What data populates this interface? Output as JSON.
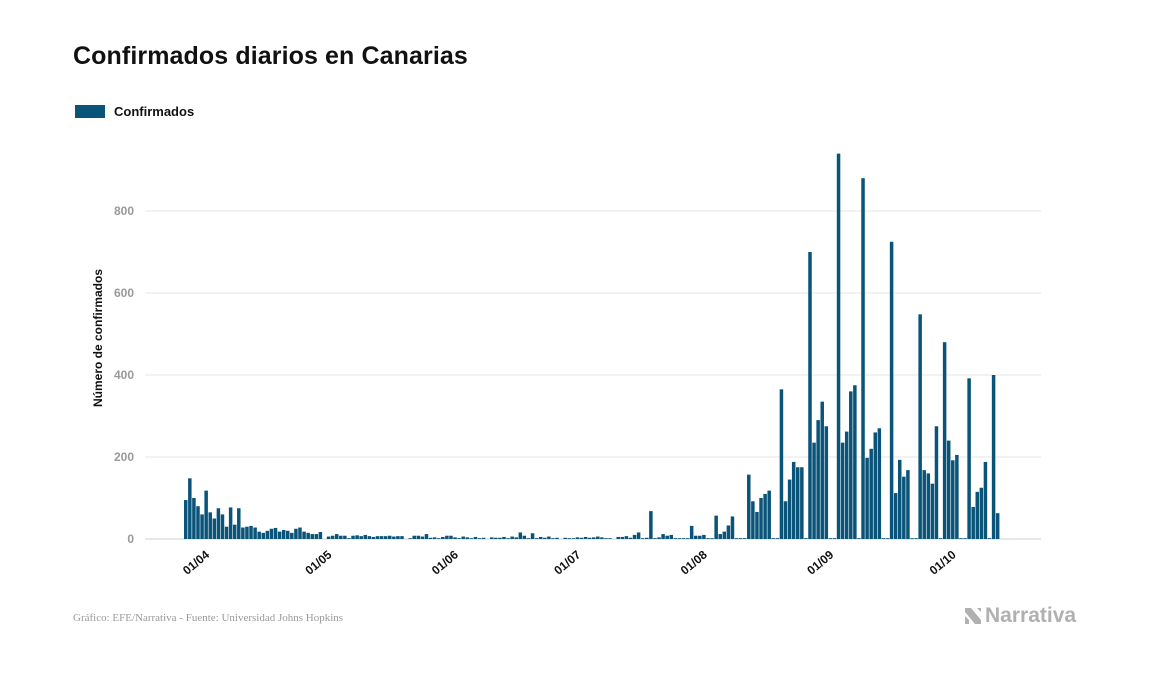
{
  "chart_data": {
    "type": "bar",
    "title": "Confirmados diarios en Canarias",
    "ylabel": "Número de confirmados",
    "xlabel": "",
    "ylim": [
      0,
      960
    ],
    "yticks": [
      0,
      200,
      400,
      600,
      800
    ],
    "grid": true,
    "legend_position": "top-left",
    "series": [
      {
        "name": "Confirmados",
        "color": "#0b5479"
      }
    ],
    "x_ticks": [
      "01/04",
      "01/05",
      "01/06",
      "01/07",
      "01/08",
      "01/09",
      "01/10"
    ],
    "x_start": "2020-03-27",
    "values": [
      95,
      148,
      100,
      80,
      60,
      118,
      65,
      50,
      75,
      60,
      30,
      77,
      35,
      75,
      28,
      30,
      32,
      28,
      18,
      15,
      20,
      25,
      27,
      18,
      22,
      20,
      15,
      25,
      28,
      18,
      15,
      12,
      12,
      17,
      0,
      6,
      8,
      12,
      8,
      8,
      2,
      8,
      9,
      7,
      10,
      7,
      5,
      7,
      7,
      7,
      8,
      6,
      7,
      7,
      0,
      2,
      8,
      8,
      6,
      12,
      3,
      4,
      2,
      5,
      8,
      8,
      4,
      2,
      6,
      4,
      2,
      5,
      2,
      3,
      0,
      4,
      3,
      3,
      5,
      2,
      6,
      4,
      16,
      8,
      2,
      14,
      2,
      5,
      3,
      6,
      2,
      3,
      0,
      3,
      2,
      2,
      4,
      3,
      5,
      3,
      4,
      6,
      4,
      2,
      2,
      0,
      5,
      5,
      7,
      3,
      10,
      16,
      2,
      3,
      68,
      2,
      4,
      12,
      8,
      10,
      2,
      2,
      2,
      2,
      32,
      8,
      8,
      10,
      2,
      2,
      57,
      12,
      18,
      33,
      55,
      2,
      2,
      2,
      157,
      92,
      66,
      100,
      110,
      118,
      2,
      2,
      365,
      92,
      145,
      188,
      175,
      175,
      2,
      700,
      235,
      290,
      335,
      275,
      2,
      2,
      940,
      235,
      262,
      360,
      375,
      2,
      880,
      198,
      220,
      260,
      270,
      2,
      2,
      725,
      112,
      193,
      152,
      168,
      2,
      2,
      548,
      168,
      160,
      135,
      275,
      2,
      480,
      240,
      192,
      205,
      2,
      2,
      392,
      78,
      115,
      125,
      188,
      2,
      400,
      63
    ]
  },
  "footer": {
    "source": "Gráfico: EFE/Narrativa - Fuente: Universidad Johns Hopkins",
    "brand": "Narrativa"
  },
  "colors": {
    "bar": "#0b5479",
    "grid": "#e6e6e6",
    "brand": "#b0b0b0"
  },
  "icons": {
    "brand": "narrativa-logo-icon"
  }
}
